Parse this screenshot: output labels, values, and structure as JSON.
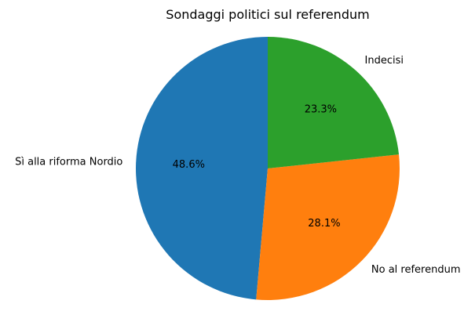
{
  "chart_data": {
    "type": "pie",
    "title": "Sondaggi politici sul referendum",
    "categories": [
      "Sì alla riforma Nordio",
      "No al referendum",
      "Indecisi"
    ],
    "values": [
      48.6,
      28.1,
      23.3
    ],
    "value_labels": [
      "48.6%",
      "28.1%",
      "23.3%"
    ],
    "colors": [
      "#1f77b4",
      "#ff7f0e",
      "#2ca02c"
    ],
    "start_angle_deg": 90,
    "direction": "counterclockwise",
    "legend": "none"
  }
}
